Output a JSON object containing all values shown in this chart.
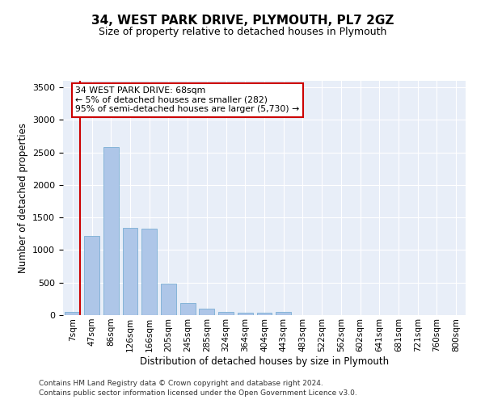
{
  "title": "34, WEST PARK DRIVE, PLYMOUTH, PL7 2GZ",
  "subtitle": "Size of property relative to detached houses in Plymouth",
  "xlabel": "Distribution of detached houses by size in Plymouth",
  "ylabel": "Number of detached properties",
  "bar_color": "#aec6e8",
  "bar_edge_color": "#7aafd4",
  "background_color": "#e8eef8",
  "grid_color": "#ffffff",
  "categories": [
    "7sqm",
    "47sqm",
    "86sqm",
    "126sqm",
    "166sqm",
    "205sqm",
    "245sqm",
    "285sqm",
    "324sqm",
    "364sqm",
    "404sqm",
    "443sqm",
    "483sqm",
    "522sqm",
    "562sqm",
    "602sqm",
    "641sqm",
    "681sqm",
    "721sqm",
    "760sqm",
    "800sqm"
  ],
  "values": [
    55,
    1220,
    2580,
    1340,
    1330,
    490,
    185,
    100,
    55,
    40,
    40,
    50,
    0,
    0,
    0,
    0,
    0,
    0,
    0,
    0,
    0
  ],
  "ylim": [
    0,
    3600
  ],
  "yticks": [
    0,
    500,
    1000,
    1500,
    2000,
    2500,
    3000,
    3500
  ],
  "vline_color": "#cc0000",
  "annotation_text": "34 WEST PARK DRIVE: 68sqm\n← 5% of detached houses are smaller (282)\n95% of semi-detached houses are larger (5,730) →",
  "annotation_box_color": "#ffffff",
  "annotation_box_edge": "#cc0000",
  "footer_line1": "Contains HM Land Registry data © Crown copyright and database right 2024.",
  "footer_line2": "Contains public sector information licensed under the Open Government Licence v3.0."
}
